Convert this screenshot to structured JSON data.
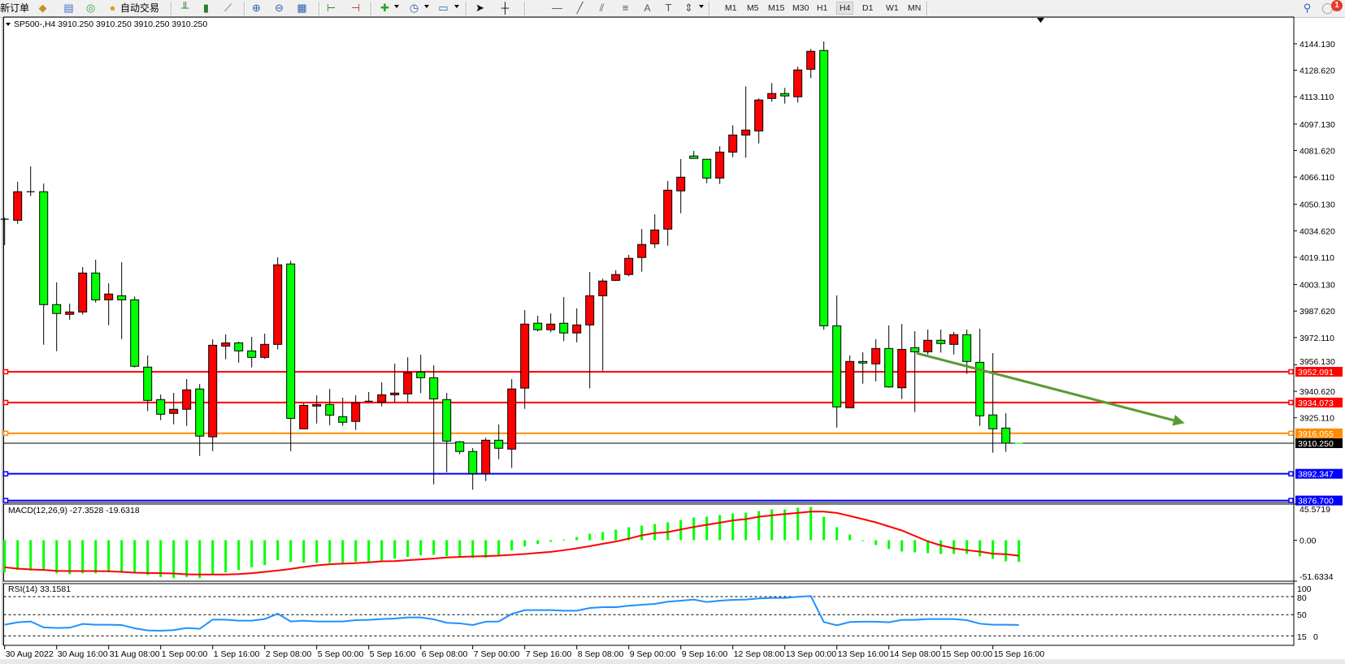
{
  "toolbar": {
    "new_order": "新订单",
    "auto_trading": "自动交易",
    "timeframes": [
      "M1",
      "M5",
      "M15",
      "M30",
      "H1",
      "H4",
      "D1",
      "W1",
      "MN"
    ],
    "active_timeframe": "H4",
    "text_tool": "A",
    "notification_count": "1",
    "icons": [
      "new-order-icon",
      "market-watch-icon",
      "data-window-icon",
      "navigator-icon",
      "signals-icon",
      "auto-trading-icon",
      "bar-chart-icon",
      "candlestick-icon",
      "line-chart-icon",
      "zoom-in-icon",
      "zoom-out-icon",
      "tile-windows-icon",
      "chart-shift-icon",
      "autoscroll-icon",
      "indicators-icon",
      "periods-icon",
      "templates-icon",
      "cursor-icon",
      "crosshair-icon",
      "vertical-line-icon",
      "horizontal-line-icon",
      "trendline-icon",
      "channel-icon",
      "fibonacci-icon",
      "text-icon",
      "text-label-icon",
      "arrows-icon",
      "search-icon",
      "notification-icon"
    ]
  },
  "chart": {
    "symbol_header": "SP500-,H4  3910.250 3910.250 3910.250 3910.250",
    "colors": {
      "bull": "#ff0000",
      "bear": "#00ff00",
      "macd_signal": "#ff0000",
      "rsi": "#1e90ff",
      "arrow": "#5a9a33"
    }
  },
  "chart_data": [
    {
      "type": "candlestick",
      "title": "SP500-,H4",
      "bid": 3910.25,
      "ylim": [
        3876.7,
        4144.13
      ],
      "y_ticks": [
        "4144.130",
        "4128.620",
        "4113.110",
        "4097.130",
        "4081.620",
        "4066.110",
        "4050.130",
        "4034.620",
        "4019.110",
        "4003.130",
        "3987.620",
        "3972.110",
        "3956.130",
        "3940.620",
        "3925.110"
      ],
      "x_labels": [
        "30 Aug 2022",
        "30 Aug 16:00",
        "31 Aug 08:00",
        "1 Sep 00:00",
        "1 Sep 16:00",
        "2 Sep 08:00",
        "5 Sep 00:00",
        "5 Sep 16:00",
        "6 Sep 08:00",
        "7 Sep 00:00",
        "7 Sep 16:00",
        "8 Sep 08:00",
        "9 Sep 00:00",
        "9 Sep 16:00",
        "12 Sep 08:00",
        "13 Sep 00:00",
        "13 Sep 16:00",
        "14 Sep 08:00",
        "15 Sep 00:00",
        "15 Sep 16:00"
      ],
      "ohlc": [
        [
          4041.4,
          4042.4,
          4026.2,
          4041.4
        ],
        [
          4040.8,
          4063.3,
          4038.7,
          4057.5
        ],
        [
          4057.5,
          4072.3,
          4054.9,
          4057.5
        ],
        [
          4057.5,
          4062.3,
          3967.9,
          3991.4
        ],
        [
          3991.4,
          4004.4,
          3964.1,
          3986.2
        ],
        [
          3985.7,
          3992.0,
          3982.5,
          3987.1
        ],
        [
          3987.1,
          4013.4,
          3985.5,
          4009.9
        ],
        [
          4009.9,
          4017.7,
          3992.6,
          3994.2
        ],
        [
          3994.2,
          4003.9,
          3979.3,
          3997.6
        ],
        [
          3996.6,
          4016.2,
          3971.2,
          3994.2
        ],
        [
          3994.2,
          3996.1,
          3954.6,
          3955.3
        ],
        [
          3954.8,
          3961.6,
          3929.0,
          3935.3
        ],
        [
          3935.8,
          3938.8,
          3923.7,
          3927.2
        ],
        [
          3927.7,
          3939.7,
          3921.3,
          3930.1
        ],
        [
          3930.1,
          3947.8,
          3920.4,
          3941.5
        ],
        [
          3942.0,
          3944.9,
          3902.8,
          3914.4
        ],
        [
          3914.0,
          3971.1,
          3905.6,
          3967.6
        ],
        [
          3967.1,
          3974.0,
          3959.4,
          3969.0
        ],
        [
          3969.0,
          3969.7,
          3957.4,
          3964.3
        ],
        [
          3964.3,
          3972.5,
          3954.6,
          3960.5
        ],
        [
          3960.5,
          3974.4,
          3959.6,
          3968.1
        ],
        [
          3968.1,
          4019.1,
          3965.2,
          4014.7
        ],
        [
          4015.2,
          4017.1,
          3905.6,
          3924.8
        ],
        [
          3918.7,
          3933.7,
          3918.5,
          3932.4
        ],
        [
          3932.0,
          3938.3,
          3921.8,
          3932.9
        ],
        [
          3932.9,
          3942.1,
          3920.8,
          3926.7
        ],
        [
          3925.8,
          3936.9,
          3920.4,
          3922.5
        ],
        [
          3923.0,
          3938.3,
          3918.0,
          3933.9
        ],
        [
          3934.8,
          3940.2,
          3934.5,
          3934.8
        ],
        [
          3934.3,
          3945.9,
          3931.8,
          3938.6
        ],
        [
          3938.6,
          3956.8,
          3934.3,
          3939.6
        ],
        [
          3939.1,
          3960.6,
          3934.3,
          3951.5
        ],
        [
          3951.9,
          3962.1,
          3939.6,
          3948.6
        ],
        [
          3948.6,
          3955.9,
          3886.2,
          3936.2
        ],
        [
          3935.8,
          3939.7,
          3893.3,
          3911.5
        ],
        [
          3911.1,
          3911.5,
          3903.8,
          3905.4
        ],
        [
          3905.4,
          3907.4,
          3883.0,
          3892.5
        ],
        [
          3892.5,
          3913.4,
          3888.1,
          3912.0
        ],
        [
          3912.0,
          3921.2,
          3900.9,
          3907.3
        ],
        [
          3906.8,
          3947.8,
          3895.7,
          3942.0
        ],
        [
          3942.5,
          3988.2,
          3930.4,
          3980.0
        ],
        [
          3980.5,
          3984.9,
          3975.7,
          3976.7
        ],
        [
          3976.7,
          3986.3,
          3975.2,
          3980.0
        ],
        [
          3980.5,
          3995.8,
          3970.0,
          3974.8
        ],
        [
          3974.8,
          3989.2,
          3969.3,
          3979.5
        ],
        [
          3979.5,
          4010.5,
          3942.4,
          3996.6
        ],
        [
          3996.6,
          4006.6,
          3952.7,
          4005.2
        ],
        [
          4005.6,
          4011.5,
          4005.2,
          4009.0
        ],
        [
          4009.0,
          4020.5,
          4008.0,
          4018.5
        ],
        [
          4019.0,
          4035.7,
          4010.7,
          4026.6
        ],
        [
          4027.0,
          4044.3,
          4024.5,
          4035.1
        ],
        [
          4035.6,
          4063.8,
          4025.9,
          4058.4
        ],
        [
          4058.0,
          4076.6,
          4044.9,
          4066.0
        ],
        [
          4078.4,
          4081.4,
          4076.8,
          4077.0
        ],
        [
          4076.5,
          4076.5,
          4062.5,
          4065.5
        ],
        [
          4065.5,
          4084.1,
          4062.0,
          4080.7
        ],
        [
          4080.7,
          4096.4,
          4077.7,
          4090.7
        ],
        [
          4090.7,
          4119.2,
          4077.4,
          4093.6
        ],
        [
          4093.1,
          4112.1,
          4085.8,
          4111.2
        ],
        [
          4112.1,
          4121.1,
          4110.2,
          4115.0
        ],
        [
          4115.0,
          4118.3,
          4109.1,
          4113.6
        ],
        [
          4113.1,
          4130.7,
          4109.7,
          4128.8
        ],
        [
          4129.2,
          4141.1,
          4124.0,
          4139.7
        ],
        [
          4140.2,
          4145.5,
          3976.7,
          3979.0
        ],
        [
          3979.0,
          3996.8,
          3919.4,
          3931.5
        ],
        [
          3931.0,
          3961.6,
          3931.0,
          3958.1
        ],
        [
          3958.1,
          3963.5,
          3945.1,
          3957.2
        ],
        [
          3956.7,
          3971.1,
          3946.4,
          3965.7
        ],
        [
          3965.7,
          3979.2,
          3942.7,
          3943.2
        ],
        [
          3942.7,
          3980.1,
          3936.1,
          3965.2
        ],
        [
          3966.2,
          3975.8,
          3928.5,
          3963.8
        ],
        [
          3963.8,
          3976.8,
          3962.2,
          3970.5
        ],
        [
          3970.5,
          3976.8,
          3963.3,
          3968.6
        ],
        [
          3968.1,
          3975.4,
          3962.2,
          3973.8
        ],
        [
          3973.8,
          3976.8,
          3950.8,
          3958.1
        ],
        [
          3957.6,
          3977.3,
          3920.4,
          3926.3
        ],
        [
          3926.8,
          3963.0,
          3904.7,
          3918.7
        ],
        [
          3919.1,
          3927.8,
          3905.2,
          3910.25
        ],
        [
          3910.25,
          3910.25,
          3910.25,
          3910.25
        ]
      ],
      "levels": [
        {
          "price": "3952.091",
          "color": "#ff0000"
        },
        {
          "price": "3934.073",
          "color": "#ff0000"
        },
        {
          "price": "3916.055",
          "color": "#ff8c00"
        },
        {
          "price": "3910.250",
          "color": "#000000"
        },
        {
          "price": "3892.347",
          "color": "#0000ff"
        },
        {
          "price": "3876.700",
          "color": "#0000ff"
        }
      ],
      "annotation": {
        "type": "arrow",
        "direction": "down-right",
        "from": [
          70,
          3963.0
        ],
        "to": [
          77,
          3922.0
        ]
      }
    },
    {
      "type": "bar+line",
      "title": "MACD(12,26,9) -27.3528 -19.6318",
      "ylim": [
        -51.6334,
        45.5719
      ],
      "y_ticks": [
        "45.5719",
        "0.00",
        "-51.6334"
      ],
      "main": [
        -40.6,
        -37.5,
        -38.2,
        -38.2,
        -41.6,
        -42.7,
        -41.6,
        -41.6,
        -40.3,
        -40.3,
        -41,
        -43.7,
        -46.4,
        -47.8,
        -46.4,
        -47.8,
        -42.7,
        -40.6,
        -37.5,
        -34.1,
        -31.4,
        -25.3,
        -27.6,
        -28.3,
        -28.6,
        -28.5,
        -28.5,
        -27.2,
        -26.6,
        -25.5,
        -23.1,
        -21.1,
        -19.0,
        -18.4,
        -20.1,
        -21.1,
        -22.2,
        -22.2,
        -18.7,
        -12.9,
        -7.8,
        -4.8,
        -2.0,
        1.0,
        4.1,
        8.2,
        10.2,
        13.3,
        16.4,
        18.4,
        20.4,
        22.5,
        25.5,
        28.6,
        29.6,
        31.7,
        33.7,
        34.7,
        36.8,
        38.8,
        38.8,
        40.9,
        41.9,
        29.6,
        16.4,
        7.1,
        -0.4,
        -6.1,
        -11.2,
        -14.3,
        -15.3,
        -16.4,
        -17.4,
        -17.4,
        -17.4,
        -20.5,
        -23.5,
        -26.6,
        -27.35
      ],
      "signal": [
        -34.1,
        -35.8,
        -36.9,
        -37.5,
        -38.6,
        -38.9,
        -38.9,
        -38.9,
        -39.2,
        -39.9,
        -41,
        -41.3,
        -41.6,
        -42,
        -43,
        -43.3,
        -43.3,
        -43.3,
        -42.7,
        -41.6,
        -39.9,
        -38.2,
        -36.2,
        -33.8,
        -31.7,
        -30.3,
        -29.6,
        -28.9,
        -27.9,
        -26.6,
        -26.3,
        -25.2,
        -24.2,
        -23.1,
        -21.8,
        -21.1,
        -20.5,
        -20.1,
        -19.4,
        -18.4,
        -17.4,
        -16,
        -14.7,
        -12.6,
        -10.2,
        -7.5,
        -4.5,
        -1.7,
        2.0,
        6.1,
        8.9,
        10.2,
        13.6,
        16.7,
        19.4,
        22.1,
        24.9,
        26.6,
        29.6,
        31.3,
        33.0,
        34.4,
        36.1,
        36.1,
        34.4,
        30.6,
        26.6,
        22.5,
        17.4,
        12.3,
        5.4,
        -1.4,
        -6.5,
        -10.2,
        -12.6,
        -14.3,
        -17.0,
        -17.7,
        -19.63
      ]
    },
    {
      "type": "line",
      "title": "RSI(14) 33.1581",
      "ylim": [
        0,
        100
      ],
      "y_ticks": [
        "100",
        "80",
        "50",
        "15",
        "0"
      ],
      "levels": [
        80,
        50,
        15
      ],
      "values": [
        33.4,
        37.5,
        38.8,
        29,
        28,
        28.5,
        34.8,
        33.4,
        33.4,
        33,
        27.6,
        24,
        23.6,
        24.5,
        28,
        26.7,
        41.9,
        41.9,
        40.1,
        40.1,
        42.8,
        51.8,
        38.8,
        40.1,
        38.8,
        38.8,
        38.8,
        41,
        41.5,
        42.8,
        43.7,
        45.5,
        45.5,
        42.4,
        36.6,
        35.7,
        33,
        38.4,
        38.8,
        51.3,
        57.6,
        57.6,
        57.6,
        56.7,
        56.7,
        61.2,
        62.5,
        62.5,
        64.8,
        66.6,
        67.9,
        71.5,
        73.3,
        75.1,
        71,
        73.3,
        74.6,
        75.1,
        76.9,
        77.8,
        77.8,
        79.6,
        80.9,
        37.9,
        32.5,
        37.9,
        38.4,
        38.4,
        37.5,
        41.5,
        41.5,
        42.8,
        42.8,
        42.8,
        41,
        35.2,
        33.4,
        33.4,
        33.16
      ]
    }
  ]
}
